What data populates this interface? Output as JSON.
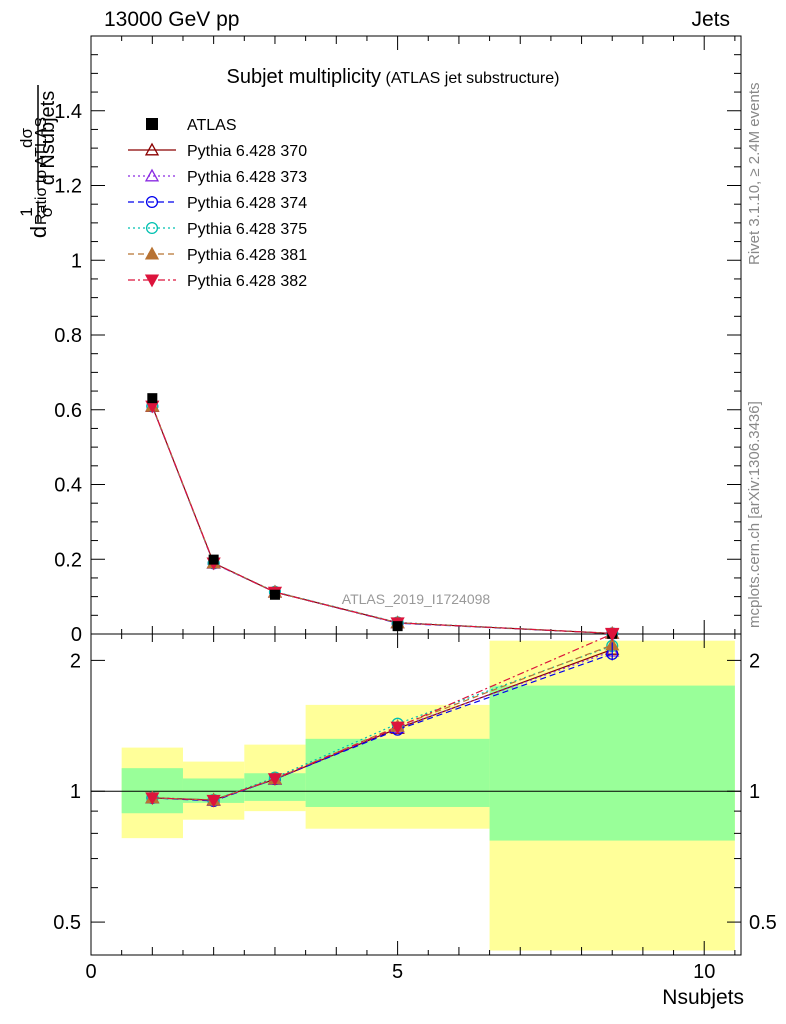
{
  "header": {
    "left": "13000 GeV pp",
    "right": "Jets"
  },
  "side": {
    "rivet": "Rivet 3.1.10, ≥ 2.4M events",
    "mcplots": "mcplots.cern.ch [arXiv:1306.3436]"
  },
  "chart_data": {
    "type": "line",
    "title": "Subjet multiplicity",
    "subtitle": "(ATLAS jet substructure)",
    "watermark": "ATLAS_2019_I1724098",
    "xlabel": "Nsubjets",
    "ylabel_main": "1/σ dσ/d Nsubjets",
    "ylabel_main_parts": {
      "frac1_num": "1",
      "frac1_den": "σ",
      "d": "d",
      "frac2_num": "dσ",
      "frac2_den": "d Nsubjets"
    },
    "ylabel_ratio": "Ratio to ATLAS",
    "xlim": [
      0,
      10.6
    ],
    "ylim_main": [
      0,
      1.6
    ],
    "ylim_ratio": [
      0.42,
      2.3
    ],
    "ratio_log_scale": true,
    "x_ticks": [
      "0",
      "5",
      "10"
    ],
    "y_ticks_main": [
      "0",
      "0.2",
      "0.4",
      "0.6",
      "0.8",
      "1",
      "1.2",
      "1.4"
    ],
    "y_ticks_ratio": [
      "0.5",
      "1",
      "2"
    ],
    "legend_position": "top-left",
    "bins": [
      [
        0.5,
        1.5
      ],
      [
        1.5,
        2.5
      ],
      [
        2.5,
        3.5
      ],
      [
        3.5,
        6.5
      ],
      [
        6.5,
        10.5
      ]
    ],
    "x": [
      1,
      2,
      3,
      5,
      8.5
    ],
    "data": {
      "name": "ATLAS",
      "values": [
        0.631,
        0.199,
        0.105,
        0.021,
        0.0007
      ]
    },
    "uncertainty_band_inner": [
      [
        0.89,
        1.13
      ],
      [
        0.94,
        1.07
      ],
      [
        0.95,
        1.1
      ],
      [
        0.92,
        1.32
      ],
      [
        0.77,
        1.75
      ]
    ],
    "uncertainty_band_outer": [
      [
        0.78,
        1.26
      ],
      [
        0.86,
        1.17
      ],
      [
        0.9,
        1.28
      ],
      [
        0.82,
        1.58
      ],
      [
        0.43,
        2.22
      ]
    ],
    "series": [
      {
        "name": "Pythia 6.428 370",
        "color": "#8b0000",
        "marker": "triangle-open",
        "dash": "solid",
        "values": [
          0.609,
          0.19,
          0.112,
          0.03,
          0.0015
        ],
        "ratio": [
          0.965,
          0.955,
          1.065,
          1.395,
          2.12
        ]
      },
      {
        "name": "Pythia 6.428 373",
        "color": "#8a2be2",
        "marker": "triangle-open",
        "dash": "dot",
        "values": [
          0.61,
          0.189,
          0.112,
          0.03,
          0.0015
        ],
        "ratio": [
          0.966,
          0.952,
          1.066,
          1.4,
          2.1
        ]
      },
      {
        "name": "Pythia 6.428 374",
        "color": "#0000ee",
        "marker": "circle-open",
        "dash": "dash",
        "values": [
          0.609,
          0.189,
          0.112,
          0.029,
          0.0015
        ],
        "ratio": [
          0.965,
          0.95,
          1.067,
          1.385,
          2.07
        ]
      },
      {
        "name": "Pythia 6.428 375",
        "color": "#00c0b0",
        "marker": "circle-open",
        "dash": "dot",
        "values": [
          0.61,
          0.19,
          0.113,
          0.031,
          0.0016
        ],
        "ratio": [
          0.967,
          0.955,
          1.075,
          1.43,
          2.16
        ]
      },
      {
        "name": "Pythia 6.428 381",
        "color": "#b87333",
        "marker": "triangle-filled",
        "dash": "dash",
        "values": [
          0.61,
          0.19,
          0.112,
          0.03,
          0.0016
        ],
        "ratio": [
          0.966,
          0.954,
          1.068,
          1.41,
          2.17
        ]
      },
      {
        "name": "Pythia 6.428 382",
        "color": "#dc143c",
        "marker": "triangle-down-filled",
        "dash": "dashdot",
        "values": [
          0.61,
          0.19,
          0.112,
          0.03,
          0.0017
        ],
        "ratio": [
          0.966,
          0.953,
          1.069,
          1.405,
          2.3
        ]
      }
    ]
  }
}
